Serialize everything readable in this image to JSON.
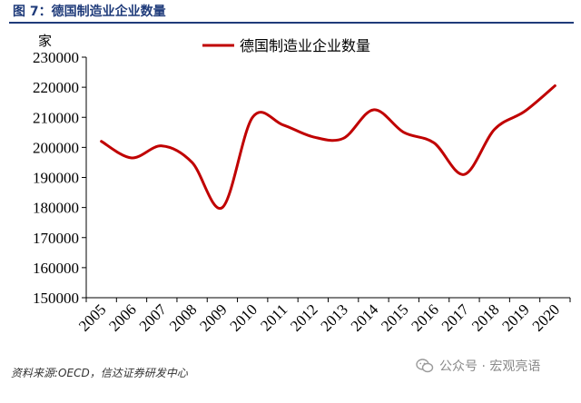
{
  "figure_title": "图 7：德国制造业企业数量",
  "source": "资料来源:OECD，信达证券研发中心",
  "watermark": {
    "text": "公众号 · 宏观亮语",
    "icon": "wechat-icon"
  },
  "colors": {
    "series": "#c00000",
    "title": "#1f3b7a",
    "axis": "#000000"
  },
  "chart_data": {
    "type": "line",
    "title": "",
    "xlabel": "",
    "ylabel": "家",
    "x": [
      2005,
      2006,
      2007,
      2008,
      2009,
      2010,
      2011,
      2012,
      2013,
      2014,
      2015,
      2016,
      2017,
      2018,
      2019,
      2020
    ],
    "categories": [
      "2005",
      "2006",
      "2007",
      "2008",
      "2009",
      "2010",
      "2011",
      "2012",
      "2013",
      "2014",
      "2015",
      "2016",
      "2017",
      "2018",
      "2019",
      "2020"
    ],
    "ylim": [
      150000,
      230000
    ],
    "yticks": [
      150000,
      160000,
      170000,
      180000,
      190000,
      200000,
      210000,
      220000,
      230000
    ],
    "ytick_labels": [
      "150000",
      "160000",
      "170000",
      "180000",
      "190000",
      "200000",
      "210000",
      "220000",
      "230000"
    ],
    "series": [
      {
        "name": "德国制造业企业数量",
        "values": [
          202000,
          196500,
          200500,
          195000,
          180000,
          210000,
          207500,
          203500,
          203000,
          212500,
          205000,
          201500,
          191000,
          206000,
          212000,
          220500
        ]
      }
    ],
    "legend": "top-center",
    "grid": false,
    "smooth": true
  }
}
